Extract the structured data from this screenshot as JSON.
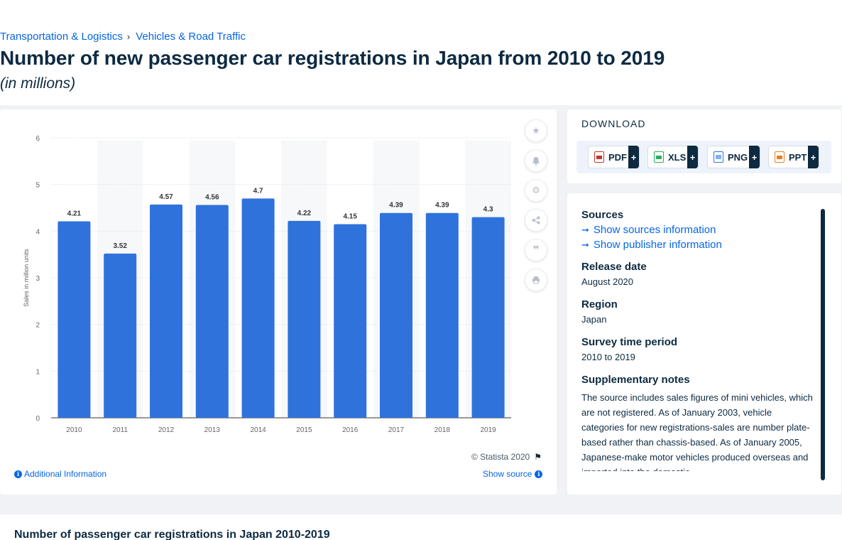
{
  "breadcrumb": {
    "item1": "Transportation & Logistics",
    "sep": "›",
    "item2": "Vehicles & Road Traffic"
  },
  "page_title": "Number of new passenger car registrations in Japan from 2010 to 2019",
  "subtitle": "(in millions)",
  "chart_data": {
    "type": "bar",
    "categories": [
      "2010",
      "2011",
      "2012",
      "2013",
      "2014",
      "2015",
      "2016",
      "2017",
      "2018",
      "2019"
    ],
    "values": [
      4.21,
      3.52,
      4.57,
      4.56,
      4.7,
      4.22,
      4.15,
      4.39,
      4.39,
      4.3
    ],
    "value_labels": [
      "4.21",
      "3.52",
      "4.57",
      "4.56",
      "4.7",
      "4.22",
      "4.15",
      "4.39",
      "4.39",
      "4.3"
    ],
    "yticks": [
      0,
      1,
      2,
      3,
      4,
      5,
      6
    ],
    "ylim": [
      0,
      6
    ],
    "xlabel": "",
    "ylabel": "Sales in million units",
    "grid": true,
    "bar_color": "#2f72db"
  },
  "chart_footer": {
    "copyright": "© Statista 2020",
    "additional_info": "Additional Information",
    "show_source": "Show source"
  },
  "download": {
    "title": "DOWNLOAD",
    "buttons": [
      {
        "label": "PDF",
        "plus": "+"
      },
      {
        "label": "XLS",
        "plus": "+"
      },
      {
        "label": "PNG",
        "plus": "+"
      },
      {
        "label": "PPT",
        "plus": "+"
      }
    ]
  },
  "meta": {
    "sources_heading": "Sources",
    "show_sources": "Show sources information",
    "show_publisher": "Show publisher information",
    "release_heading": "Release date",
    "release_value": "August 2020",
    "region_heading": "Region",
    "region_value": "Japan",
    "survey_heading": "Survey time period",
    "survey_value": "2010 to 2019",
    "notes_heading": "Supplementary notes",
    "notes_value": "The source includes sales figures of mini vehicles, which are not registered. As of January 2003, vehicle categories for new registrations-sales are number plate-based rather than chassis-based. As of January 2005, Japanese-make motor vehicles produced overseas and imported into the domestic"
  },
  "bottom": {
    "title": "Number of passenger car registrations in Japan 2010-2019"
  }
}
